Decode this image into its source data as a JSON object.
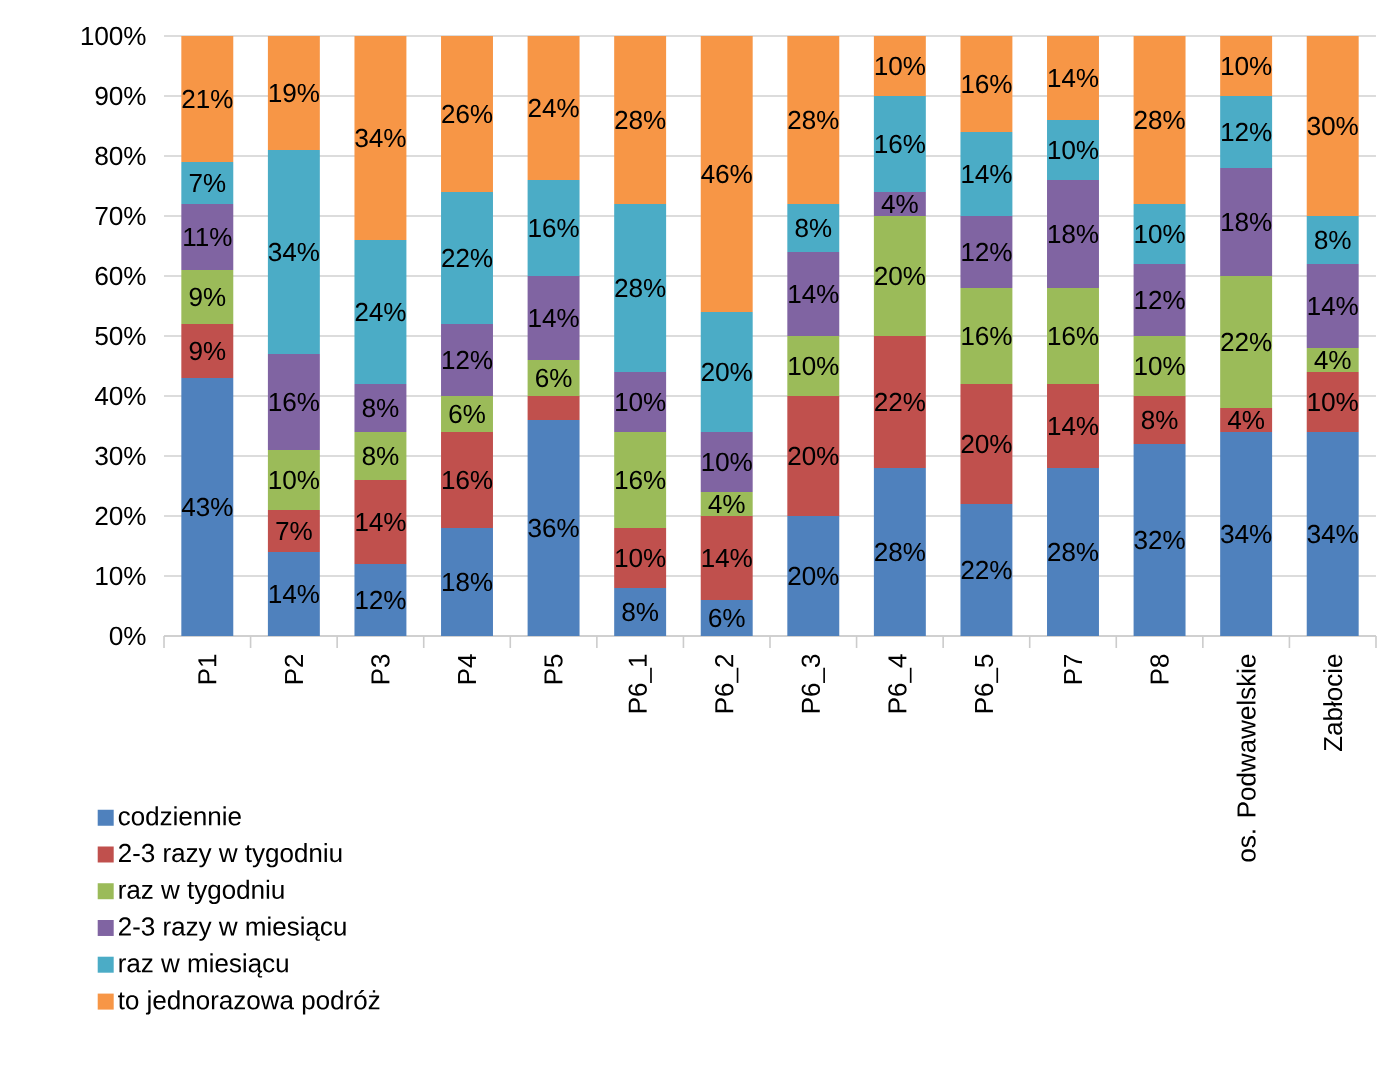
{
  "chart_data": {
    "type": "bar",
    "stacked": true,
    "grid": "y",
    "legend": "bottom left",
    "categories": [
      "P1",
      "P2",
      "P3",
      "P4",
      "P5",
      "P6_1",
      "P6_2",
      "P6_3",
      "P6_4",
      "P6_5",
      "P7",
      "P8",
      "os. Podwawelskie",
      "Zabłocie"
    ],
    "ylim": [
      0,
      100
    ],
    "yticks": [
      {
        "value": 0,
        "label": "0%"
      },
      {
        "value": 10,
        "label": "10%"
      },
      {
        "value": 20,
        "label": "20%"
      },
      {
        "value": 30,
        "label": "30%"
      },
      {
        "value": 40,
        "label": "40%"
      },
      {
        "value": 50,
        "label": "50%"
      },
      {
        "value": 60,
        "label": "60%"
      },
      {
        "value": 70,
        "label": "70%"
      },
      {
        "value": 80,
        "label": "80%"
      },
      {
        "value": 90,
        "label": "90%"
      },
      {
        "value": 100,
        "label": "100%"
      }
    ],
    "series": [
      {
        "name": "codziennie",
        "color": "#4f81bd",
        "values": [
          43,
          14,
          12,
          18,
          36,
          8,
          6,
          20,
          28,
          22,
          28,
          32,
          34,
          34
        ],
        "value_labels": [
          "43%",
          "14%",
          "12%",
          "18%",
          "36%",
          "8%",
          "6%",
          "20%",
          "28%",
          "22%",
          "28%",
          "32%",
          "34%",
          "34%"
        ]
      },
      {
        "name": "2-3 razy w tygodniu",
        "color": "#c0504d",
        "values": [
          9,
          7,
          14,
          16,
          4,
          10,
          14,
          20,
          22,
          20,
          14,
          8,
          4,
          10
        ],
        "value_labels": [
          "9%",
          "7%",
          "14%",
          "16%",
          null,
          "10%",
          "14%",
          "20%",
          "22%",
          "20%",
          "14%",
          "8%",
          "4%",
          "10%"
        ]
      },
      {
        "name": "raz w tygodniu",
        "color": "#9bbb59",
        "values": [
          9,
          10,
          8,
          6,
          6,
          16,
          4,
          10,
          20,
          16,
          16,
          10,
          22,
          4
        ],
        "value_labels": [
          "9%",
          "10%",
          "8%",
          "6%",
          "6%",
          "16%",
          "4%",
          "10%",
          "20%",
          "16%",
          "16%",
          "10%",
          "22%",
          "4%"
        ]
      },
      {
        "name": "2-3 razy w miesiącu",
        "color": "#8064a2",
        "values": [
          11,
          16,
          8,
          12,
          14,
          10,
          10,
          14,
          4,
          12,
          18,
          12,
          18,
          14
        ],
        "value_labels": [
          "11%",
          "16%",
          "8%",
          "12%",
          "14%",
          "10%",
          "10%",
          "14%",
          "4%",
          "12%",
          "18%",
          "12%",
          "18%",
          "14%"
        ]
      },
      {
        "name": "raz w miesiącu",
        "color": "#4bacc6",
        "values": [
          7,
          34,
          24,
          22,
          16,
          28,
          20,
          8,
          16,
          14,
          10,
          10,
          12,
          8
        ],
        "value_labels": [
          "7%",
          "34%",
          "24%",
          "22%",
          "16%",
          "28%",
          "20%",
          "8%",
          "16%",
          "14%",
          "10%",
          "10%",
          "12%",
          "8%"
        ]
      },
      {
        "name": "to jednorazowa podróż",
        "color": "#f79646",
        "values": [
          21,
          19,
          34,
          26,
          24,
          28,
          46,
          28,
          10,
          16,
          14,
          28,
          10,
          30
        ],
        "value_labels": [
          "21%",
          "19%",
          "34%",
          "26%",
          "24%",
          "28%",
          "46%",
          "28%",
          "10%",
          "16%",
          "14%",
          "28%",
          "10%",
          "30%"
        ]
      }
    ]
  }
}
